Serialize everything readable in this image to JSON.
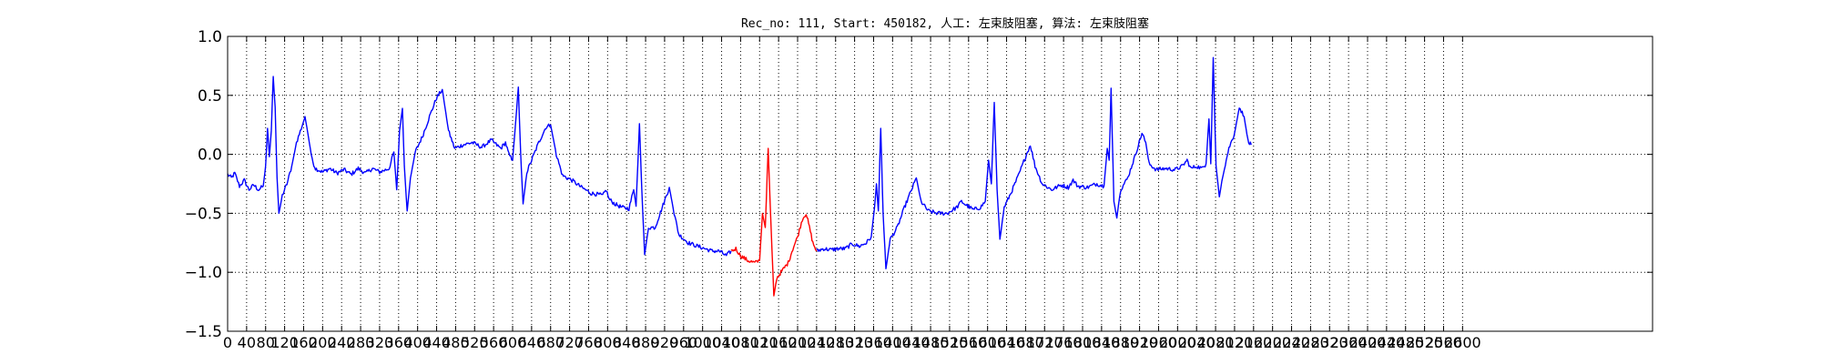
{
  "chart_data": {
    "type": "line",
    "title": "Rec_no: 111, Start: 450182, 人工: 左束肢阻塞, 算法: 左束肢阻塞",
    "xlabel": "",
    "ylabel": "",
    "xlim": [
      0,
      3000
    ],
    "ylim": [
      -1.5,
      1.0
    ],
    "grid": true,
    "grid_style": "dotted",
    "yticks": [
      "1.0",
      "0.5",
      "0.0",
      "−0.5",
      "−1.0",
      "−1.5"
    ],
    "xticks": [
      "0",
      "40",
      "80",
      "120",
      "160",
      "200",
      "240",
      "280",
      "320",
      "360",
      "400",
      "440",
      "480",
      "520",
      "560",
      "600",
      "640",
      "680",
      "720",
      "760",
      "800",
      "840",
      "880",
      "920",
      "960",
      "1000",
      "1040",
      "1080",
      "1120",
      "1160",
      "1200",
      "1240",
      "1280",
      "1320",
      "1360",
      "1400",
      "1440",
      "1480",
      "1520",
      "1560",
      "1600",
      "1640",
      "1680",
      "1720",
      "1760",
      "1800",
      "1840",
      "1880",
      "1920",
      "1960",
      "2000",
      "2040",
      "2080",
      "2120",
      "2160",
      "2200",
      "2240",
      "2280",
      "2320",
      "2360",
      "2400",
      "2440",
      "2480",
      "2520",
      "2560",
      "2600"
    ],
    "series": [
      {
        "color": "#0000ff",
        "points": [
          [
            0,
            -0.17
          ],
          [
            8,
            -0.2
          ],
          [
            15,
            -0.16
          ],
          [
            25,
            -0.27
          ],
          [
            35,
            -0.22
          ],
          [
            45,
            -0.3
          ],
          [
            55,
            -0.26
          ],
          [
            65,
            -0.3
          ],
          [
            75,
            -0.27
          ],
          [
            80,
            -0.1
          ],
          [
            84,
            0.22
          ],
          [
            88,
            -0.02
          ],
          [
            92,
            0.2
          ],
          [
            96,
            0.66
          ],
          [
            100,
            0.4
          ],
          [
            104,
            -0.2
          ],
          [
            108,
            -0.5
          ],
          [
            115,
            -0.35
          ],
          [
            125,
            -0.25
          ],
          [
            135,
            -0.1
          ],
          [
            145,
            0.1
          ],
          [
            155,
            0.22
          ],
          [
            163,
            0.32
          ],
          [
            170,
            0.15
          ],
          [
            178,
            -0.05
          ],
          [
            185,
            -0.12
          ],
          [
            200,
            -0.15
          ],
          [
            215,
            -0.12
          ],
          [
            230,
            -0.16
          ],
          [
            245,
            -0.13
          ],
          [
            260,
            -0.17
          ],
          [
            275,
            -0.12
          ],
          [
            290,
            -0.16
          ],
          [
            305,
            -0.12
          ],
          [
            320,
            -0.15
          ],
          [
            340,
            -0.12
          ],
          [
            350,
            0.02
          ],
          [
            356,
            -0.3
          ],
          [
            362,
            0.2
          ],
          [
            368,
            0.39
          ],
          [
            372,
            -0.1
          ],
          [
            378,
            -0.48
          ],
          [
            385,
            -0.2
          ],
          [
            395,
            0.02
          ],
          [
            410,
            0.15
          ],
          [
            425,
            0.32
          ],
          [
            440,
            0.48
          ],
          [
            452,
            0.55
          ],
          [
            465,
            0.2
          ],
          [
            478,
            0.05
          ],
          [
            495,
            0.08
          ],
          [
            515,
            0.1
          ],
          [
            535,
            0.06
          ],
          [
            555,
            0.12
          ],
          [
            575,
            0.05
          ],
          [
            585,
            0.1
          ],
          [
            592,
            0.0
          ],
          [
            600,
            -0.05
          ],
          [
            606,
            0.25
          ],
          [
            612,
            0.57
          ],
          [
            617,
            0.0
          ],
          [
            622,
            -0.42
          ],
          [
            630,
            -0.15
          ],
          [
            640,
            -0.05
          ],
          [
            655,
            0.1
          ],
          [
            670,
            0.23
          ],
          [
            680,
            0.25
          ],
          [
            692,
            0.0
          ],
          [
            705,
            -0.18
          ],
          [
            725,
            -0.22
          ],
          [
            745,
            -0.28
          ],
          [
            765,
            -0.33
          ],
          [
            780,
            -0.34
          ],
          [
            790,
            -0.35
          ],
          [
            797,
            -0.3
          ],
          [
            803,
            -0.38
          ],
          [
            815,
            -0.42
          ],
          [
            830,
            -0.45
          ],
          [
            845,
            -0.46
          ],
          [
            855,
            -0.3
          ],
          [
            860,
            -0.44
          ],
          [
            867,
            0.26
          ],
          [
            872,
            -0.3
          ],
          [
            878,
            -0.85
          ],
          [
            886,
            -0.62
          ],
          [
            900,
            -0.62
          ],
          [
            915,
            -0.45
          ],
          [
            930,
            -0.28
          ],
          [
            940,
            -0.5
          ],
          [
            950,
            -0.68
          ],
          [
            970,
            -0.75
          ],
          [
            990,
            -0.78
          ],
          [
            1005,
            -0.8
          ],
          [
            1020,
            -0.82
          ],
          [
            1035,
            -0.82
          ],
          [
            1050,
            -0.86
          ],
          [
            1060,
            -0.82
          ]
        ]
      },
      {
        "color": "#ff0000",
        "points": [
          [
            1060,
            -0.82
          ],
          [
            1070,
            -0.8
          ],
          [
            1080,
            -0.86
          ],
          [
            1095,
            -0.9
          ],
          [
            1110,
            -0.92
          ],
          [
            1120,
            -0.9
          ],
          [
            1126,
            -0.5
          ],
          [
            1132,
            -0.62
          ],
          [
            1138,
            0.05
          ],
          [
            1144,
            -0.6
          ],
          [
            1150,
            -1.2
          ],
          [
            1156,
            -1.05
          ],
          [
            1165,
            -1.0
          ],
          [
            1180,
            -0.92
          ],
          [
            1190,
            -0.8
          ],
          [
            1200,
            -0.7
          ],
          [
            1210,
            -0.55
          ],
          [
            1218,
            -0.5
          ],
          [
            1225,
            -0.62
          ],
          [
            1232,
            -0.75
          ],
          [
            1240,
            -0.82
          ]
        ]
      },
      {
        "color": "#0000ff",
        "points": [
          [
            1240,
            -0.82
          ],
          [
            1255,
            -0.8
          ],
          [
            1270,
            -0.81
          ],
          [
            1285,
            -0.8
          ],
          [
            1300,
            -0.8
          ],
          [
            1315,
            -0.76
          ],
          [
            1330,
            -0.78
          ],
          [
            1345,
            -0.75
          ],
          [
            1355,
            -0.7
          ],
          [
            1362,
            -0.45
          ],
          [
            1366,
            -0.25
          ],
          [
            1370,
            -0.48
          ],
          [
            1375,
            0.22
          ],
          [
            1380,
            -0.5
          ],
          [
            1386,
            -0.97
          ],
          [
            1395,
            -0.72
          ],
          [
            1410,
            -0.62
          ],
          [
            1425,
            -0.45
          ],
          [
            1440,
            -0.3
          ],
          [
            1450,
            -0.2
          ],
          [
            1460,
            -0.4
          ],
          [
            1475,
            -0.48
          ],
          [
            1495,
            -0.5
          ],
          [
            1515,
            -0.5
          ],
          [
            1535,
            -0.45
          ],
          [
            1545,
            -0.4
          ],
          [
            1555,
            -0.43
          ],
          [
            1570,
            -0.47
          ],
          [
            1585,
            -0.45
          ],
          [
            1595,
            -0.4
          ],
          [
            1602,
            -0.05
          ],
          [
            1608,
            -0.25
          ],
          [
            1614,
            0.44
          ],
          [
            1620,
            -0.3
          ],
          [
            1626,
            -0.72
          ],
          [
            1635,
            -0.45
          ],
          [
            1650,
            -0.32
          ],
          [
            1665,
            -0.18
          ],
          [
            1680,
            -0.02
          ],
          [
            1690,
            0.08
          ],
          [
            1700,
            -0.1
          ],
          [
            1715,
            -0.25
          ],
          [
            1735,
            -0.3
          ],
          [
            1755,
            -0.26
          ],
          [
            1770,
            -0.28
          ],
          [
            1780,
            -0.22
          ],
          [
            1790,
            -0.27
          ],
          [
            1810,
            -0.28
          ],
          [
            1830,
            -0.25
          ],
          [
            1845,
            -0.27
          ],
          [
            1852,
            0.05
          ],
          [
            1856,
            -0.05
          ],
          [
            1860,
            0.56
          ],
          [
            1866,
            -0.4
          ],
          [
            1872,
            -0.54
          ],
          [
            1880,
            -0.3
          ],
          [
            1895,
            -0.2
          ],
          [
            1910,
            -0.02
          ],
          [
            1925,
            0.18
          ],
          [
            1933,
            0.1
          ],
          [
            1940,
            -0.08
          ],
          [
            1955,
            -0.13
          ],
          [
            1975,
            -0.12
          ],
          [
            1995,
            -0.13
          ],
          [
            2010,
            -0.1
          ],
          [
            2020,
            -0.05
          ],
          [
            2028,
            -0.12
          ],
          [
            2040,
            -0.1
          ],
          [
            2052,
            -0.12
          ],
          [
            2060,
            -0.08
          ],
          [
            2066,
            0.3
          ],
          [
            2070,
            -0.08
          ],
          [
            2075,
            0.82
          ],
          [
            2081,
            -0.1
          ],
          [
            2088,
            -0.36
          ],
          [
            2095,
            -0.18
          ],
          [
            2108,
            0.05
          ],
          [
            2120,
            0.18
          ],
          [
            2130,
            0.4
          ],
          [
            2140,
            0.32
          ],
          [
            2148,
            0.12
          ],
          [
            2155,
            0.08
          ]
        ]
      }
    ]
  }
}
